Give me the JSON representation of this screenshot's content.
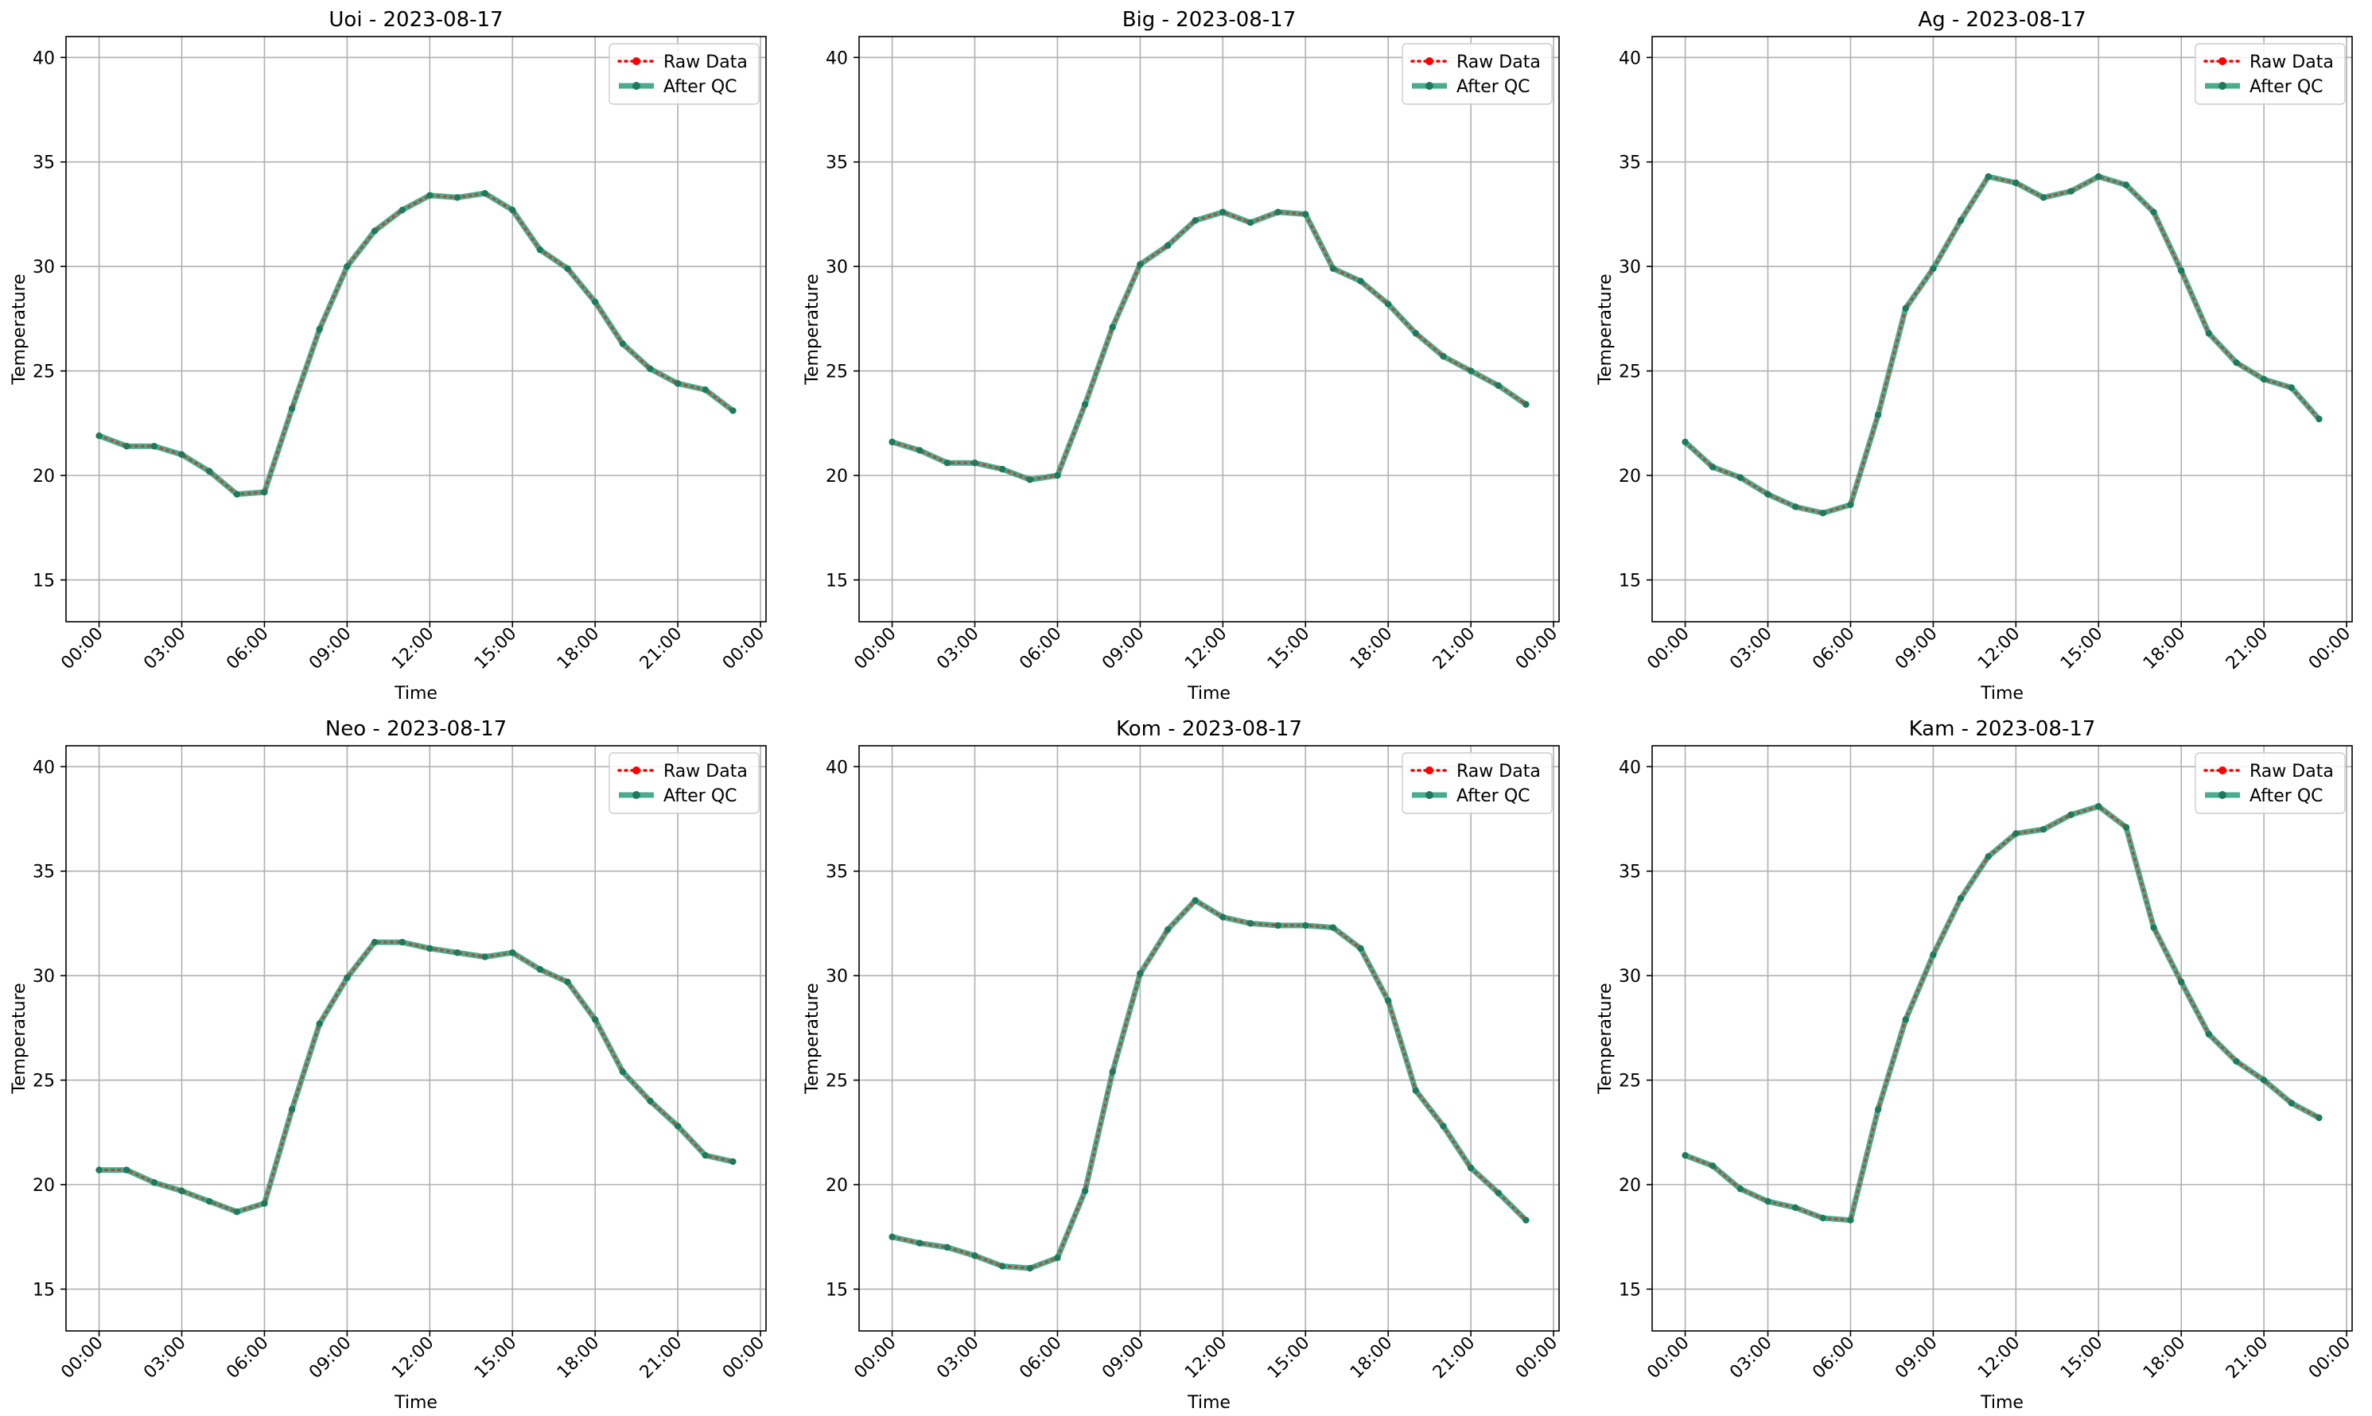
{
  "figure": {
    "legend_labels": [
      "Raw Data",
      "After QC"
    ],
    "legend_position": "upper right",
    "line_colors": {
      "raw": "#ff0000",
      "qc": "#2a9d78",
      "qc_marker": "#1f7a5c"
    },
    "grid": true
  },
  "chart_data": [
    {
      "type": "line",
      "title": "Uoi - 2023-08-17",
      "xlabel": "Time",
      "ylabel": "Temperature",
      "x_ticks": [
        "00:00",
        "03:00",
        "06:00",
        "09:00",
        "12:00",
        "15:00",
        "18:00",
        "21:00",
        "00:00"
      ],
      "y_ticks": [
        15,
        20,
        25,
        30,
        35,
        40
      ],
      "ylim": [
        13,
        41
      ],
      "xlim_hours": [
        -1.2,
        24.2
      ],
      "x_hours": [
        0,
        1,
        2,
        3,
        4,
        5,
        6,
        7,
        8,
        9,
        10,
        11,
        12,
        13,
        14,
        15,
        16,
        17,
        18,
        19,
        20,
        21,
        22,
        23
      ],
      "series": [
        {
          "name": "Raw Data",
          "values": [
            21.9,
            21.4,
            21.4,
            21.0,
            20.2,
            19.1,
            19.2,
            23.2,
            27.0,
            30.0,
            31.7,
            32.7,
            33.4,
            33.3,
            33.5,
            32.7,
            30.8,
            29.9,
            28.3,
            26.3,
            25.1,
            24.4,
            24.1,
            23.1
          ]
        },
        {
          "name": "After QC",
          "values": [
            21.9,
            21.4,
            21.4,
            21.0,
            20.2,
            19.1,
            19.2,
            23.2,
            27.0,
            30.0,
            31.7,
            32.7,
            33.4,
            33.3,
            33.5,
            32.7,
            30.8,
            29.9,
            28.3,
            26.3,
            25.1,
            24.4,
            24.1,
            23.1
          ]
        }
      ]
    },
    {
      "type": "line",
      "title": "Big - 2023-08-17",
      "xlabel": "Time",
      "ylabel": "Temperature",
      "x_ticks": [
        "00:00",
        "03:00",
        "06:00",
        "09:00",
        "12:00",
        "15:00",
        "18:00",
        "21:00",
        "00:00"
      ],
      "y_ticks": [
        15,
        20,
        25,
        30,
        35,
        40
      ],
      "ylim": [
        13,
        41
      ],
      "xlim_hours": [
        -1.2,
        24.2
      ],
      "x_hours": [
        0,
        1,
        2,
        3,
        4,
        5,
        6,
        7,
        8,
        9,
        10,
        11,
        12,
        13,
        14,
        15,
        16,
        17,
        18,
        19,
        20,
        21,
        22,
        23
      ],
      "series": [
        {
          "name": "Raw Data",
          "values": [
            21.6,
            21.2,
            20.6,
            20.6,
            20.3,
            19.8,
            20.0,
            23.4,
            27.1,
            30.1,
            31.0,
            32.2,
            32.6,
            32.1,
            32.6,
            32.5,
            29.9,
            29.3,
            28.2,
            26.8,
            25.7,
            25.0,
            24.3,
            23.4
          ]
        },
        {
          "name": "After QC",
          "values": [
            21.6,
            21.2,
            20.6,
            20.6,
            20.3,
            19.8,
            20.0,
            23.4,
            27.1,
            30.1,
            31.0,
            32.2,
            32.6,
            32.1,
            32.6,
            32.5,
            29.9,
            29.3,
            28.2,
            26.8,
            25.7,
            25.0,
            24.3,
            23.4
          ]
        }
      ]
    },
    {
      "type": "line",
      "title": "Ag - 2023-08-17",
      "xlabel": "Time",
      "ylabel": "Temperature",
      "x_ticks": [
        "00:00",
        "03:00",
        "06:00",
        "09:00",
        "12:00",
        "15:00",
        "18:00",
        "21:00",
        "00:00"
      ],
      "y_ticks": [
        15,
        20,
        25,
        30,
        35,
        40
      ],
      "ylim": [
        13,
        41
      ],
      "xlim_hours": [
        -1.2,
        24.2
      ],
      "x_hours": [
        0,
        1,
        2,
        3,
        4,
        5,
        6,
        7,
        8,
        9,
        10,
        11,
        12,
        13,
        14,
        15,
        16,
        17,
        18,
        19,
        20,
        21,
        22,
        23
      ],
      "series": [
        {
          "name": "Raw Data",
          "values": [
            21.6,
            20.4,
            19.9,
            19.1,
            18.5,
            18.2,
            18.6,
            22.9,
            28.0,
            29.9,
            32.2,
            34.3,
            34.0,
            33.3,
            33.6,
            34.3,
            33.9,
            32.6,
            29.8,
            26.8,
            25.4,
            24.6,
            24.2,
            22.7
          ]
        },
        {
          "name": "After QC",
          "values": [
            21.6,
            20.4,
            19.9,
            19.1,
            18.5,
            18.2,
            18.6,
            22.9,
            28.0,
            29.9,
            32.2,
            34.3,
            34.0,
            33.3,
            33.6,
            34.3,
            33.9,
            32.6,
            29.8,
            26.8,
            25.4,
            24.6,
            24.2,
            22.7
          ]
        }
      ]
    },
    {
      "type": "line",
      "title": "Neo - 2023-08-17",
      "xlabel": "Time",
      "ylabel": "Temperature",
      "x_ticks": [
        "00:00",
        "03:00",
        "06:00",
        "09:00",
        "12:00",
        "15:00",
        "18:00",
        "21:00",
        "00:00"
      ],
      "y_ticks": [
        15,
        20,
        25,
        30,
        35,
        40
      ],
      "ylim": [
        13,
        41
      ],
      "xlim_hours": [
        -1.2,
        24.2
      ],
      "x_hours": [
        0,
        1,
        2,
        3,
        4,
        5,
        6,
        7,
        8,
        9,
        10,
        11,
        12,
        13,
        14,
        15,
        16,
        17,
        18,
        19,
        20,
        21,
        22,
        23
      ],
      "series": [
        {
          "name": "Raw Data",
          "values": [
            20.7,
            20.7,
            20.1,
            19.7,
            19.2,
            18.7,
            19.1,
            23.6,
            27.7,
            29.9,
            31.6,
            31.6,
            31.3,
            31.1,
            30.9,
            31.1,
            30.3,
            29.7,
            27.9,
            25.4,
            24.0,
            22.8,
            21.4,
            21.1
          ]
        },
        {
          "name": "After QC",
          "values": [
            20.7,
            20.7,
            20.1,
            19.7,
            19.2,
            18.7,
            19.1,
            23.6,
            27.7,
            29.9,
            31.6,
            31.6,
            31.3,
            31.1,
            30.9,
            31.1,
            30.3,
            29.7,
            27.9,
            25.4,
            24.0,
            22.8,
            21.4,
            21.1
          ]
        }
      ]
    },
    {
      "type": "line",
      "title": "Kom - 2023-08-17",
      "xlabel": "Time",
      "ylabel": "Temperature",
      "x_ticks": [
        "00:00",
        "03:00",
        "06:00",
        "09:00",
        "12:00",
        "15:00",
        "18:00",
        "21:00",
        "00:00"
      ],
      "y_ticks": [
        15,
        20,
        25,
        30,
        35,
        40
      ],
      "ylim": [
        13,
        41
      ],
      "xlim_hours": [
        -1.2,
        24.2
      ],
      "x_hours": [
        0,
        1,
        2,
        3,
        4,
        5,
        6,
        7,
        8,
        9,
        10,
        11,
        12,
        13,
        14,
        15,
        16,
        17,
        18,
        19,
        20,
        21,
        22,
        23
      ],
      "series": [
        {
          "name": "Raw Data",
          "values": [
            17.5,
            17.2,
            17.0,
            16.6,
            16.1,
            16.0,
            16.5,
            19.7,
            25.4,
            30.1,
            32.2,
            33.6,
            32.8,
            32.5,
            32.4,
            32.4,
            32.3,
            31.3,
            28.8,
            24.5,
            22.8,
            20.8,
            19.6,
            18.3
          ]
        },
        {
          "name": "After QC",
          "values": [
            17.5,
            17.2,
            17.0,
            16.6,
            16.1,
            16.0,
            16.5,
            19.7,
            25.4,
            30.1,
            32.2,
            33.6,
            32.8,
            32.5,
            32.4,
            32.4,
            32.3,
            31.3,
            28.8,
            24.5,
            22.8,
            20.8,
            19.6,
            18.3
          ]
        }
      ]
    },
    {
      "type": "line",
      "title": "Kam - 2023-08-17",
      "xlabel": "Time",
      "ylabel": "Temperature",
      "x_ticks": [
        "00:00",
        "03:00",
        "06:00",
        "09:00",
        "12:00",
        "15:00",
        "18:00",
        "21:00",
        "00:00"
      ],
      "y_ticks": [
        15,
        20,
        25,
        30,
        35,
        40
      ],
      "ylim": [
        13,
        41
      ],
      "xlim_hours": [
        -1.2,
        24.2
      ],
      "x_hours": [
        0,
        1,
        2,
        3,
        4,
        5,
        6,
        7,
        8,
        9,
        10,
        11,
        12,
        13,
        14,
        15,
        16,
        17,
        18,
        19,
        20,
        21,
        22,
        23
      ],
      "series": [
        {
          "name": "Raw Data",
          "values": [
            21.4,
            20.9,
            19.8,
            19.2,
            18.9,
            18.4,
            18.3,
            23.6,
            27.9,
            31.0,
            33.7,
            35.7,
            36.8,
            37.0,
            37.7,
            38.1,
            37.1,
            32.3,
            29.7,
            27.2,
            25.9,
            25.0,
            23.9,
            23.2
          ]
        },
        {
          "name": "After QC",
          "values": [
            21.4,
            20.9,
            19.8,
            19.2,
            18.9,
            18.4,
            18.3,
            23.6,
            27.9,
            31.0,
            33.7,
            35.7,
            36.8,
            37.0,
            37.7,
            38.1,
            37.1,
            32.3,
            29.7,
            27.2,
            25.9,
            25.0,
            23.9,
            23.2
          ]
        }
      ]
    }
  ]
}
